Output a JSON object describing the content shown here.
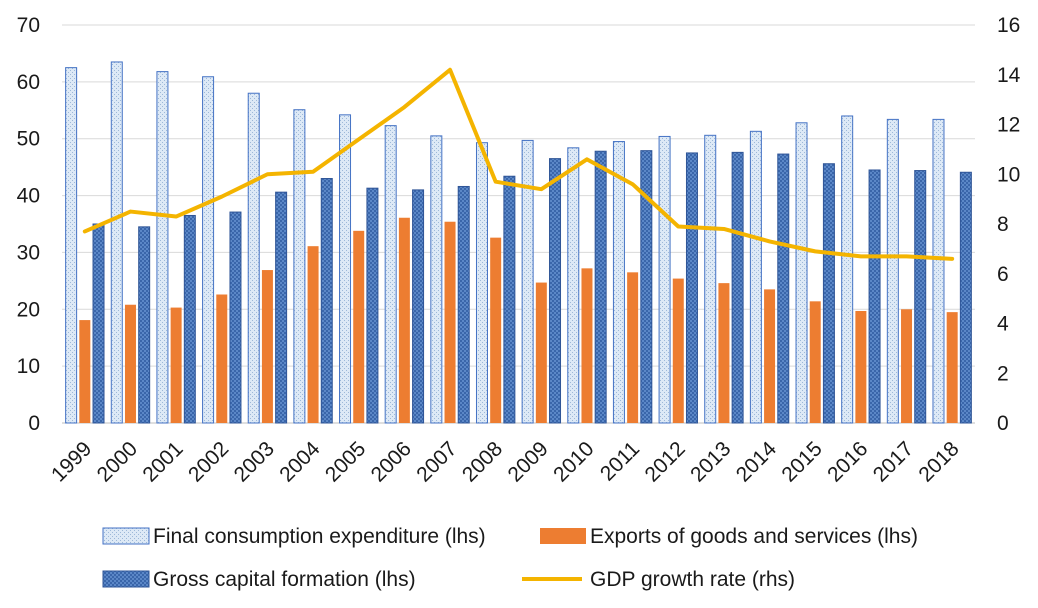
{
  "chart_data": {
    "type": "bar",
    "categories": [
      "1999",
      "2000",
      "2001",
      "2002",
      "2003",
      "2004",
      "2005",
      "2006",
      "2007",
      "2008",
      "2009",
      "2010",
      "2011",
      "2012",
      "2013",
      "2014",
      "2015",
      "2016",
      "2017",
      "2018"
    ],
    "y_left": {
      "ticks": [
        "0",
        "10",
        "20",
        "30",
        "40",
        "50",
        "60",
        "70"
      ],
      "ylim": [
        0,
        70
      ]
    },
    "y_right": {
      "ticks": [
        "0",
        "2",
        "4",
        "6",
        "8",
        "10",
        "12",
        "14",
        "16"
      ],
      "ylim": [
        0,
        16
      ]
    },
    "grid": true,
    "legend_position": "bottom",
    "series": [
      {
        "name": "Final consumption expenditure (lhs)",
        "type": "bar",
        "axis": "left",
        "color": "#bdd7ee",
        "edge": "#4472c4",
        "values": [
          62.5,
          63.5,
          61.8,
          60.9,
          58.0,
          55.1,
          54.2,
          52.3,
          50.5,
          49.3,
          49.7,
          48.4,
          49.5,
          50.4,
          50.6,
          51.3,
          52.8,
          54.0,
          53.4,
          53.4
        ]
      },
      {
        "name": "Exports of goods and services (lhs)",
        "type": "bar",
        "axis": "left",
        "color": "#ed7d31",
        "values": [
          18.1,
          20.8,
          20.3,
          22.6,
          26.9,
          31.1,
          33.8,
          36.1,
          35.4,
          32.6,
          24.7,
          27.2,
          26.5,
          25.4,
          24.6,
          23.5,
          21.4,
          19.7,
          20.0,
          19.5
        ]
      },
      {
        "name": "Gross capital formation (lhs)",
        "type": "bar",
        "axis": "left",
        "color": "#4472c4",
        "edge": "#2f5597",
        "values": [
          35.0,
          34.5,
          36.5,
          37.1,
          40.6,
          43.0,
          41.3,
          41.0,
          41.6,
          43.4,
          46.5,
          47.8,
          47.9,
          47.5,
          47.6,
          47.3,
          45.6,
          44.5,
          44.4,
          44.1
        ]
      },
      {
        "name": "GDP growth rate (rhs)",
        "type": "line",
        "axis": "right",
        "color": "#f4b400",
        "values": [
          7.7,
          8.5,
          8.3,
          9.1,
          10.0,
          10.1,
          11.4,
          12.7,
          14.2,
          9.7,
          9.4,
          10.6,
          9.6,
          7.9,
          7.8,
          7.3,
          6.9,
          6.7,
          6.7,
          6.6
        ]
      }
    ]
  }
}
